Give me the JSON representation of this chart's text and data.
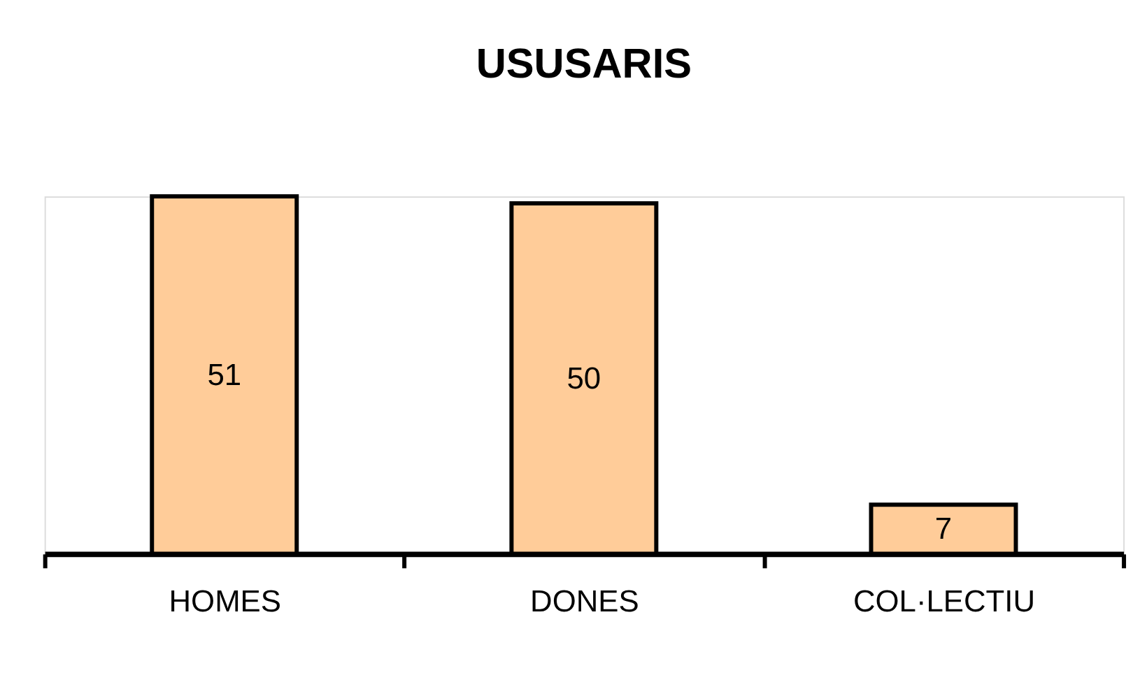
{
  "chart_data": {
    "type": "bar",
    "title": "USUSARIS",
    "categories": [
      "HOMES",
      "DONES",
      "COL·LECTIU"
    ],
    "values": [
      51,
      50,
      7
    ],
    "color": "#ffcc99",
    "data_labels": true
  }
}
